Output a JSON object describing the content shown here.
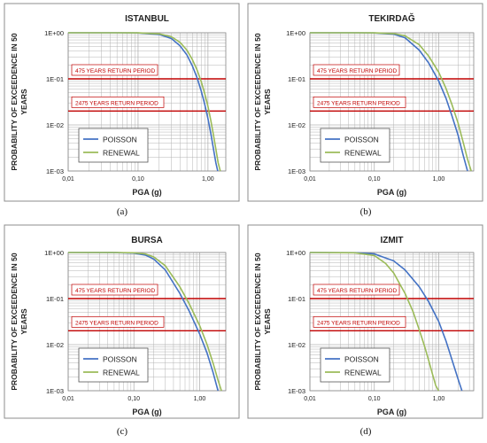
{
  "colors": {
    "poisson": "#4472C4",
    "renewal": "#9BBB59",
    "return_period_line": "#C00000",
    "return_period_text": "#C00000",
    "grid": "#b4b4b4",
    "frame": "#8c8c8c"
  },
  "chart_data": [
    {
      "type": "line",
      "caption": "(a)",
      "title": "ISTANBUL",
      "xlabel": "PGA (g)",
      "ylabel": "PROBABILITY OF EXCEEDENCE IN 50 YEARS",
      "ylabel_lines": [
        "PROBABILITY OF EXCEEDENCE IN 50",
        "YEARS"
      ],
      "x_scale": "log",
      "y_scale": "log",
      "xlim": [
        0.01,
        1.8
      ],
      "ylim": [
        0.001,
        1
      ],
      "x_ticks": [
        "0,01",
        "0,10",
        "1,00"
      ],
      "y_ticks": [
        "1E-03",
        "1E-02",
        "1E-01",
        "1E+00"
      ],
      "grid": true,
      "legend": {
        "position": "bottom-left",
        "entries": [
          "POISSON",
          "RENEWAL"
        ]
      },
      "reference_lines": [
        {
          "label": "475 YEARS RETURN PERIOD",
          "y": 0.1
        },
        {
          "label": "2475 YEARS RETURN PERIOD",
          "y": 0.02
        }
      ],
      "series": [
        {
          "name": "POISSON",
          "color": "#4472C4",
          "x": [
            0.01,
            0.05,
            0.1,
            0.2,
            0.3,
            0.4,
            0.5,
            0.6,
            0.7,
            0.8,
            0.9,
            1.0,
            1.1,
            1.2,
            1.3,
            1.38
          ],
          "y": [
            1,
            0.998,
            0.99,
            0.92,
            0.75,
            0.52,
            0.33,
            0.19,
            0.105,
            0.055,
            0.028,
            0.0135,
            0.0065,
            0.003,
            0.0015,
            0.001
          ]
        },
        {
          "name": "RENEWAL",
          "color": "#9BBB59",
          "x": [
            0.01,
            0.05,
            0.1,
            0.2,
            0.3,
            0.4,
            0.5,
            0.6,
            0.7,
            0.8,
            0.9,
            1.0,
            1.1,
            1.2,
            1.3,
            1.4,
            1.5
          ],
          "y": [
            1,
            0.999,
            0.995,
            0.95,
            0.82,
            0.62,
            0.42,
            0.26,
            0.155,
            0.088,
            0.048,
            0.025,
            0.0125,
            0.006,
            0.003,
            0.0015,
            0.001
          ]
        }
      ]
    },
    {
      "type": "line",
      "caption": "(b)",
      "title": "TEKIRDAĞ",
      "xlabel": "PGA (g)",
      "ylabel": "PROBABILITY OF EXCEEDENCE IN 50 YEARS",
      "ylabel_lines": [
        "PROBABILITY OF EXCEEDENCE IN 50",
        "YEARS"
      ],
      "x_scale": "log",
      "y_scale": "log",
      "xlim": [
        0.01,
        3.5
      ],
      "ylim": [
        0.001,
        1
      ],
      "x_ticks": [
        "0,01",
        "0,10",
        "1,00"
      ],
      "y_ticks": [
        "1E-03",
        "1E-02",
        "1E-01",
        "1E+00"
      ],
      "grid": true,
      "legend": {
        "position": "bottom-left",
        "entries": [
          "POISSON",
          "RENEWAL"
        ]
      },
      "reference_lines": [
        {
          "label": "475 YEARS RETURN PERIOD",
          "y": 0.1
        },
        {
          "label": "2475 YEARS RETURN PERIOD",
          "y": 0.02
        }
      ],
      "series": [
        {
          "name": "POISSON",
          "color": "#4472C4",
          "x": [
            0.01,
            0.05,
            0.1,
            0.2,
            0.3,
            0.5,
            0.7,
            1.0,
            1.3,
            1.6,
            2.0,
            2.4,
            2.8
          ],
          "y": [
            1,
            0.998,
            0.99,
            0.93,
            0.78,
            0.42,
            0.22,
            0.09,
            0.038,
            0.016,
            0.006,
            0.0022,
            0.001
          ]
        },
        {
          "name": "RENEWAL",
          "color": "#9BBB59",
          "x": [
            0.01,
            0.05,
            0.1,
            0.2,
            0.3,
            0.5,
            0.7,
            1.0,
            1.3,
            1.6,
            2.0,
            2.4,
            2.8,
            3.2
          ],
          "y": [
            1,
            0.999,
            0.995,
            0.96,
            0.86,
            0.55,
            0.31,
            0.14,
            0.062,
            0.028,
            0.011,
            0.0042,
            0.0018,
            0.001
          ]
        }
      ]
    },
    {
      "type": "line",
      "caption": "(c)",
      "title": "BURSA",
      "xlabel": "PGA (g)",
      "ylabel": "PROBABILITY OF EXCEEDENCE IN 50 YEARS",
      "ylabel_lines": [
        "PROBABILITY OF EXCEEDENCE IN 50",
        "YEARS"
      ],
      "x_scale": "log",
      "y_scale": "log",
      "xlim": [
        0.01,
        2.5
      ],
      "ylim": [
        0.001,
        1
      ],
      "x_ticks": [
        "0,01",
        "0,10",
        "1,00"
      ],
      "y_ticks": [
        "1E-03",
        "1E-02",
        "1E-01",
        "1E+00"
      ],
      "grid": true,
      "legend": {
        "position": "bottom-left",
        "entries": [
          "POISSON",
          "RENEWAL"
        ]
      },
      "reference_lines": [
        {
          "label": "475 YEARS RETURN PERIOD",
          "y": 0.1
        },
        {
          "label": "2475 YEARS RETURN PERIOD",
          "y": 0.02
        }
      ],
      "series": [
        {
          "name": "POISSON",
          "color": "#4472C4",
          "x": [
            0.01,
            0.05,
            0.1,
            0.15,
            0.2,
            0.3,
            0.5,
            0.7,
            1.0,
            1.3,
            1.6,
            1.9
          ],
          "y": [
            1,
            0.995,
            0.97,
            0.88,
            0.72,
            0.42,
            0.13,
            0.052,
            0.017,
            0.0065,
            0.0025,
            0.001
          ]
        },
        {
          "name": "RENEWAL",
          "color": "#9BBB59",
          "x": [
            0.01,
            0.05,
            0.1,
            0.15,
            0.2,
            0.3,
            0.5,
            0.7,
            1.0,
            1.3,
            1.6,
            1.9,
            2.15
          ],
          "y": [
            1,
            0.998,
            0.985,
            0.93,
            0.8,
            0.52,
            0.18,
            0.075,
            0.026,
            0.01,
            0.004,
            0.0017,
            0.001
          ]
        }
      ]
    },
    {
      "type": "line",
      "caption": "(d)",
      "title": "IZMIT",
      "xlabel": "PGA (g)",
      "ylabel": "PROBABILITY OF EXCEEDENCE IN 50 YEARS",
      "ylabel_lines": [
        "PROBABILITY OF EXCEEDENCE IN 50",
        "YEARS"
      ],
      "x_scale": "log",
      "y_scale": "log",
      "xlim": [
        0.01,
        3.5
      ],
      "ylim": [
        0.001,
        1
      ],
      "x_ticks": [
        "0,01",
        "0,10",
        "1,00"
      ],
      "y_ticks": [
        "1E-03",
        "1E-02",
        "1E-01",
        "1E+00"
      ],
      "grid": true,
      "legend": {
        "position": "bottom-left",
        "entries": [
          "POISSON",
          "RENEWAL"
        ]
      },
      "reference_lines": [
        {
          "label": "475 YEARS RETURN PERIOD",
          "y": 0.1
        },
        {
          "label": "2475 YEARS RETURN PERIOD",
          "y": 0.02
        }
      ],
      "series": [
        {
          "name": "POISSON",
          "color": "#4472C4",
          "x": [
            0.01,
            0.05,
            0.1,
            0.2,
            0.3,
            0.5,
            0.7,
            1.0,
            1.3,
            1.6,
            2.0,
            2.3
          ],
          "y": [
            1,
            0.99,
            0.93,
            0.66,
            0.42,
            0.18,
            0.085,
            0.032,
            0.012,
            0.0048,
            0.0018,
            0.001
          ]
        },
        {
          "name": "RENEWAL",
          "color": "#9BBB59",
          "x": [
            0.01,
            0.05,
            0.1,
            0.15,
            0.2,
            0.3,
            0.4,
            0.5,
            0.6,
            0.7,
            0.8,
            0.9,
            1.0
          ],
          "y": [
            1,
            0.985,
            0.86,
            0.58,
            0.36,
            0.13,
            0.052,
            0.021,
            0.0095,
            0.0045,
            0.0023,
            0.0013,
            0.001
          ]
        }
      ]
    }
  ]
}
